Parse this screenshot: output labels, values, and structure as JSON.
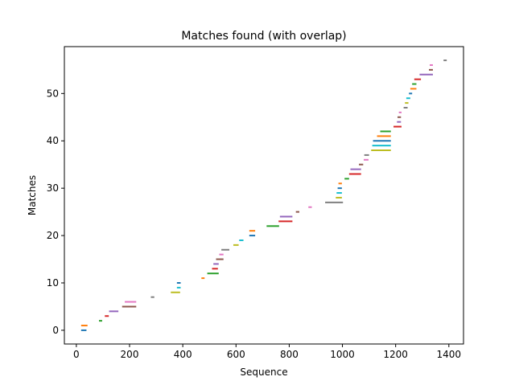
{
  "chart_data": {
    "type": "segments",
    "title": "Matches found (with overlap)",
    "xlabel": "Sequence",
    "ylabel": "Matches",
    "xlim": [
      -45,
      1455
    ],
    "ylim": [
      -2.9,
      59.9
    ],
    "xticks": [
      0,
      200,
      400,
      600,
      800,
      1000,
      1200,
      1400
    ],
    "yticks": [
      0,
      10,
      20,
      30,
      40,
      50
    ],
    "grid": false,
    "segments": [
      {
        "y": 0,
        "x1": 18,
        "x2": 38,
        "color": "#1f77b4"
      },
      {
        "y": 1,
        "x1": 18,
        "x2": 42,
        "color": "#ff7f0e"
      },
      {
        "y": 2,
        "x1": 85,
        "x2": 97,
        "color": "#2ca02c"
      },
      {
        "y": 3,
        "x1": 107,
        "x2": 122,
        "color": "#d62728"
      },
      {
        "y": 4,
        "x1": 123,
        "x2": 158,
        "color": "#9467bd"
      },
      {
        "y": 5,
        "x1": 172,
        "x2": 225,
        "color": "#8c564b"
      },
      {
        "y": 6,
        "x1": 182,
        "x2": 225,
        "color": "#e377c2"
      },
      {
        "y": 7,
        "x1": 280,
        "x2": 293,
        "color": "#7f7f7f"
      },
      {
        "y": 8,
        "x1": 355,
        "x2": 390,
        "color": "#bcbd22"
      },
      {
        "y": 9,
        "x1": 378,
        "x2": 392,
        "color": "#17becf"
      },
      {
        "y": 10,
        "x1": 378,
        "x2": 392,
        "color": "#1f77b4"
      },
      {
        "y": 11,
        "x1": 470,
        "x2": 482,
        "color": "#ff7f0e"
      },
      {
        "y": 12,
        "x1": 492,
        "x2": 535,
        "color": "#2ca02c"
      },
      {
        "y": 13,
        "x1": 510,
        "x2": 532,
        "color": "#d62728"
      },
      {
        "y": 14,
        "x1": 515,
        "x2": 535,
        "color": "#9467bd"
      },
      {
        "y": 15,
        "x1": 525,
        "x2": 553,
        "color": "#8c564b"
      },
      {
        "y": 16,
        "x1": 537,
        "x2": 553,
        "color": "#e377c2"
      },
      {
        "y": 17,
        "x1": 545,
        "x2": 575,
        "color": "#7f7f7f"
      },
      {
        "y": 18,
        "x1": 590,
        "x2": 610,
        "color": "#bcbd22"
      },
      {
        "y": 19,
        "x1": 612,
        "x2": 628,
        "color": "#17becf"
      },
      {
        "y": 20,
        "x1": 650,
        "x2": 672,
        "color": "#1f77b4"
      },
      {
        "y": 21,
        "x1": 650,
        "x2": 672,
        "color": "#ff7f0e"
      },
      {
        "y": 22,
        "x1": 715,
        "x2": 762,
        "color": "#2ca02c"
      },
      {
        "y": 23,
        "x1": 760,
        "x2": 812,
        "color": "#d62728"
      },
      {
        "y": 24,
        "x1": 765,
        "x2": 812,
        "color": "#9467bd"
      },
      {
        "y": 25,
        "x1": 825,
        "x2": 838,
        "color": "#8c564b"
      },
      {
        "y": 26,
        "x1": 872,
        "x2": 885,
        "color": "#e377c2"
      },
      {
        "y": 27,
        "x1": 935,
        "x2": 1002,
        "color": "#7f7f7f"
      },
      {
        "y": 28,
        "x1": 975,
        "x2": 998,
        "color": "#bcbd22"
      },
      {
        "y": 29,
        "x1": 978,
        "x2": 998,
        "color": "#17becf"
      },
      {
        "y": 30,
        "x1": 982,
        "x2": 998,
        "color": "#1f77b4"
      },
      {
        "y": 31,
        "x1": 985,
        "x2": 998,
        "color": "#ff7f0e"
      },
      {
        "y": 32,
        "x1": 1008,
        "x2": 1025,
        "color": "#2ca02c"
      },
      {
        "y": 33,
        "x1": 1025,
        "x2": 1070,
        "color": "#d62728"
      },
      {
        "y": 34,
        "x1": 1030,
        "x2": 1070,
        "color": "#9467bd"
      },
      {
        "y": 35,
        "x1": 1062,
        "x2": 1078,
        "color": "#8c564b"
      },
      {
        "y": 36,
        "x1": 1080,
        "x2": 1098,
        "color": "#e377c2"
      },
      {
        "y": 37,
        "x1": 1082,
        "x2": 1100,
        "color": "#7f7f7f"
      },
      {
        "y": 38,
        "x1": 1108,
        "x2": 1182,
        "color": "#bcbd22"
      },
      {
        "y": 39,
        "x1": 1112,
        "x2": 1182,
        "color": "#17becf"
      },
      {
        "y": 40,
        "x1": 1115,
        "x2": 1182,
        "color": "#1f77b4"
      },
      {
        "y": 41,
        "x1": 1130,
        "x2": 1182,
        "color": "#ff7f0e"
      },
      {
        "y": 42,
        "x1": 1142,
        "x2": 1182,
        "color": "#2ca02c"
      },
      {
        "y": 43,
        "x1": 1192,
        "x2": 1222,
        "color": "#d62728"
      },
      {
        "y": 44,
        "x1": 1205,
        "x2": 1220,
        "color": "#9467bd"
      },
      {
        "y": 45,
        "x1": 1207,
        "x2": 1220,
        "color": "#8c564b"
      },
      {
        "y": 46,
        "x1": 1212,
        "x2": 1222,
        "color": "#e377c2"
      },
      {
        "y": 47,
        "x1": 1230,
        "x2": 1245,
        "color": "#7f7f7f"
      },
      {
        "y": 48,
        "x1": 1235,
        "x2": 1248,
        "color": "#bcbd22"
      },
      {
        "y": 49,
        "x1": 1240,
        "x2": 1255,
        "color": "#17becf"
      },
      {
        "y": 50,
        "x1": 1250,
        "x2": 1262,
        "color": "#1f77b4"
      },
      {
        "y": 51,
        "x1": 1255,
        "x2": 1278,
        "color": "#ff7f0e"
      },
      {
        "y": 52,
        "x1": 1262,
        "x2": 1278,
        "color": "#2ca02c"
      },
      {
        "y": 53,
        "x1": 1270,
        "x2": 1295,
        "color": "#d62728"
      },
      {
        "y": 54,
        "x1": 1290,
        "x2": 1340,
        "color": "#9467bd"
      },
      {
        "y": 55,
        "x1": 1325,
        "x2": 1340,
        "color": "#8c564b"
      },
      {
        "y": 56,
        "x1": 1328,
        "x2": 1340,
        "color": "#e377c2"
      },
      {
        "y": 57,
        "x1": 1380,
        "x2": 1392,
        "color": "#7f7f7f"
      }
    ]
  }
}
